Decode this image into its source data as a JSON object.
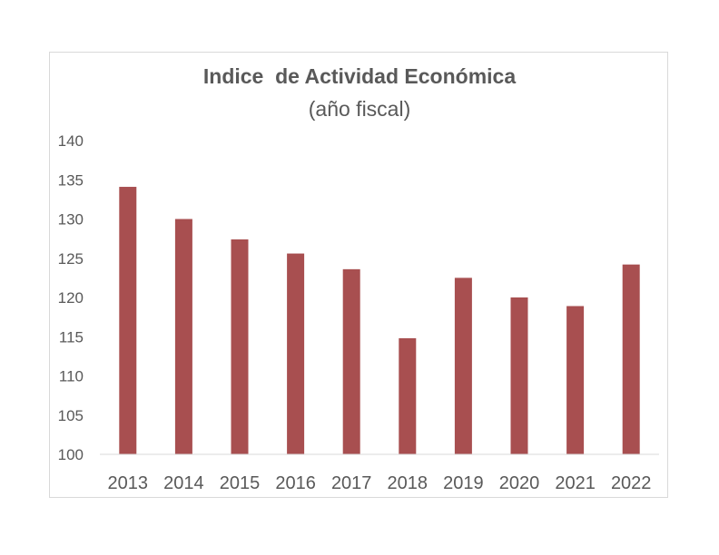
{
  "chart_data": {
    "type": "bar",
    "title": "Indice  de Actividad Económica",
    "subtitle": "(año fiscal)",
    "xlabel": "",
    "ylabel": "",
    "categories": [
      "2013",
      "2014",
      "2015",
      "2016",
      "2017",
      "2018",
      "2019",
      "2020",
      "2021",
      "2022"
    ],
    "series": [
      {
        "values": [
          134.1,
          130.0,
          127.4,
          125.6,
          123.6,
          114.8,
          122.5,
          120.0,
          118.9,
          124.2
        ]
      }
    ],
    "ylim": [
      100,
      140
    ],
    "yticks": [
      "100",
      "105",
      "110",
      "115",
      "120",
      "125",
      "130",
      "135",
      "140"
    ],
    "grid": false,
    "legend": "none",
    "colors": {
      "bar": "#a84f50",
      "axis": "#d9d9d9",
      "text": "#595959",
      "title": "#595959"
    }
  }
}
